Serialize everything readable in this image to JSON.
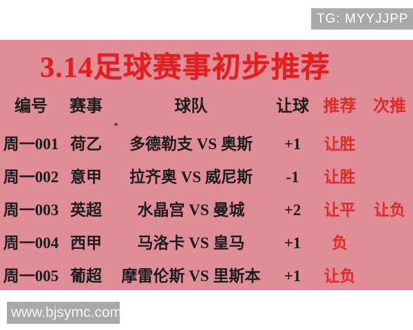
{
  "telegram_badge": {
    "label": "TG: MYYJJPP",
    "bg": "#a9a9a9",
    "color": "#ffffff"
  },
  "banner": {
    "title": "3.14足球赛事初步推荐",
    "bg": "#e08c99",
    "title_color": "#e51d1d"
  },
  "table": {
    "headers": [
      {
        "label": "编号",
        "color": "#1d1d1d"
      },
      {
        "label": "赛事",
        "color": "#1d1d1d"
      },
      {
        "label": "球队",
        "color": "#1d1d1d"
      },
      {
        "label": "让球",
        "color": "#1d1d1d"
      },
      {
        "label": "推荐",
        "color": "#dd2b26"
      },
      {
        "label": "次推",
        "color": "#dd2b26"
      }
    ],
    "rows": [
      {
        "id": "周一001",
        "league": "荷乙",
        "teams": "多德勒支 VS 奥斯",
        "handicap": "+1",
        "pick": "让胜",
        "alt": ""
      },
      {
        "id": "周一002",
        "league": "意甲",
        "teams": "拉齐奥 VS 威尼斯",
        "handicap": "-1",
        "pick": "让胜",
        "alt": ""
      },
      {
        "id": "周一003",
        "league": "英超",
        "teams": "水晶宫 VS 曼城",
        "handicap": "+2",
        "pick": "让平",
        "alt": "让负"
      },
      {
        "id": "周一004",
        "league": "西甲",
        "teams": "马洛卡 VS 皇马",
        "handicap": "+1",
        "pick": "负",
        "alt": ""
      },
      {
        "id": "周一005",
        "league": "葡超",
        "teams": "摩雷伦斯 VS 里斯本",
        "handicap": "+1",
        "pick": "让负",
        "alt": ""
      }
    ]
  },
  "footer": {
    "website": "www.bjsymc.com",
    "bg": "#a9a9a9",
    "color": "#f4f4f4"
  }
}
